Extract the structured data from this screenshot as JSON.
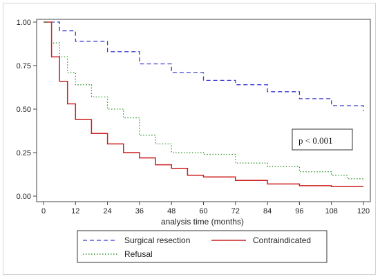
{
  "chart_data": {
    "type": "line",
    "title": "",
    "xlabel": "analysis time (months)",
    "ylabel": "",
    "xlim": [
      0,
      120
    ],
    "ylim": [
      0,
      1
    ],
    "x_ticks": [
      0,
      12,
      24,
      36,
      48,
      60,
      72,
      84,
      96,
      108,
      120
    ],
    "y_ticks": [
      0.0,
      0.25,
      0.5,
      0.75,
      1.0
    ],
    "y_tick_labels": [
      "0.00",
      "0.25",
      "0.50",
      "0.75",
      "1.00"
    ],
    "grid": false,
    "legend_placement": "bottom",
    "annotation": "p < 0.001",
    "series": [
      {
        "name": "Surgical resection",
        "color": "#3a3acd",
        "dash": "dashed",
        "points": [
          [
            0,
            1.0
          ],
          [
            6,
            0.95
          ],
          [
            12,
            0.89
          ],
          [
            24,
            0.83
          ],
          [
            36,
            0.76
          ],
          [
            48,
            0.71
          ],
          [
            60,
            0.665
          ],
          [
            72,
            0.64
          ],
          [
            84,
            0.6
          ],
          [
            96,
            0.56
          ],
          [
            108,
            0.52
          ],
          [
            120,
            0.49
          ]
        ]
      },
      {
        "name": "Contraindicated",
        "color": "#cc1f1f",
        "dash": "solid",
        "points": [
          [
            0,
            1.0
          ],
          [
            3,
            0.8
          ],
          [
            6,
            0.66
          ],
          [
            9,
            0.53
          ],
          [
            12,
            0.44
          ],
          [
            18,
            0.36
          ],
          [
            24,
            0.3
          ],
          [
            30,
            0.25
          ],
          [
            36,
            0.22
          ],
          [
            42,
            0.18
          ],
          [
            48,
            0.16
          ],
          [
            54,
            0.12
          ],
          [
            60,
            0.11
          ],
          [
            72,
            0.09
          ],
          [
            84,
            0.07
          ],
          [
            96,
            0.06
          ],
          [
            108,
            0.055
          ],
          [
            120,
            0.055
          ]
        ]
      },
      {
        "name": "Refusal",
        "color": "#2e9a2e",
        "dash": "dotted",
        "points": [
          [
            0,
            1.0
          ],
          [
            3,
            0.88
          ],
          [
            6,
            0.8
          ],
          [
            9,
            0.71
          ],
          [
            12,
            0.64
          ],
          [
            18,
            0.57
          ],
          [
            24,
            0.5
          ],
          [
            30,
            0.45
          ],
          [
            36,
            0.35
          ],
          [
            42,
            0.3
          ],
          [
            48,
            0.25
          ],
          [
            60,
            0.24
          ],
          [
            66,
            0.24
          ],
          [
            72,
            0.19
          ],
          [
            84,
            0.17
          ],
          [
            96,
            0.14
          ],
          [
            108,
            0.12
          ],
          [
            114,
            0.1
          ],
          [
            120,
            0.09
          ]
        ]
      }
    ]
  }
}
